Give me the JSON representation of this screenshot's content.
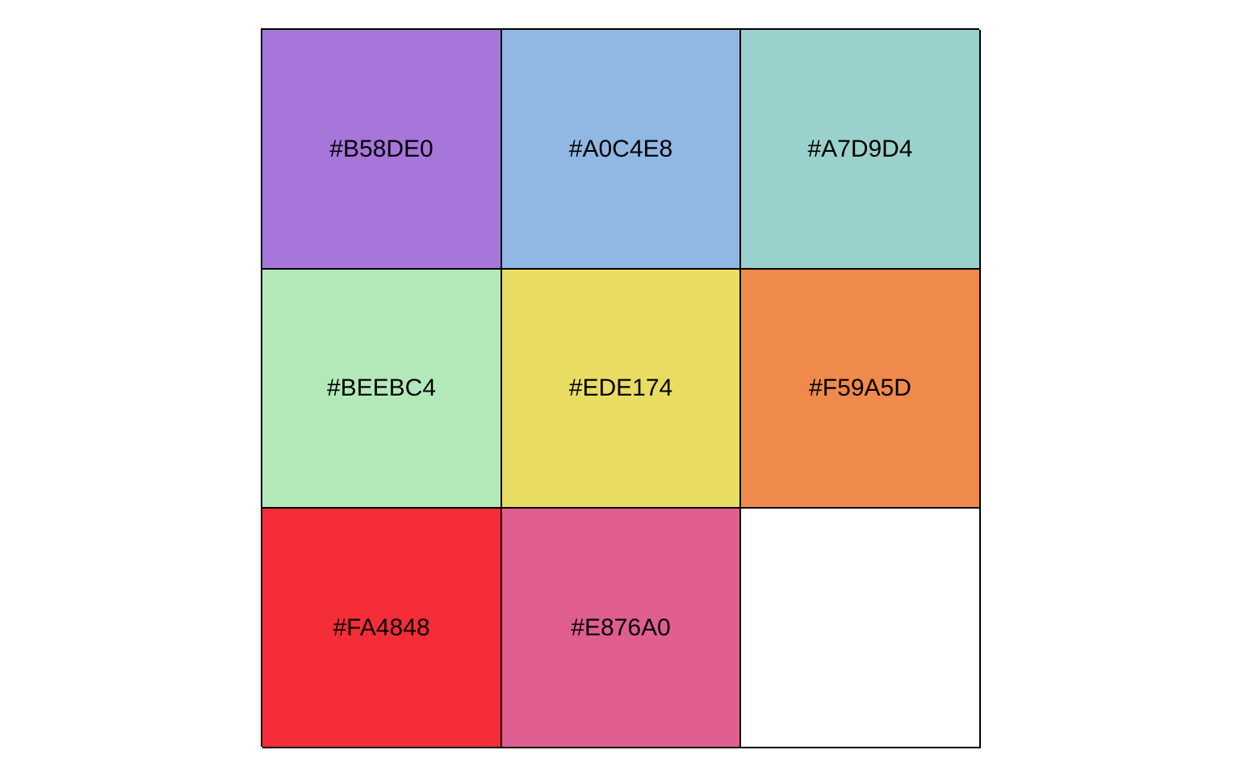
{
  "palette": {
    "swatches": [
      {
        "label": "#B58DE0",
        "fill": "#A676DA"
      },
      {
        "label": "#A0C4E8",
        "fill": "#91B7E3"
      },
      {
        "label": "#A7D9D4",
        "fill": "#9AD1CC"
      },
      {
        "label": "#BEEBC4",
        "fill": "#B3E8B9"
      },
      {
        "label": "#EDE174",
        "fill": "#E8DD62"
      },
      {
        "label": "#F59A5D",
        "fill": "#F0894C"
      },
      {
        "label": "#FA4848",
        "fill": "#F52D38"
      },
      {
        "label": "#E876A0",
        "fill": "#E05E8F"
      },
      {
        "label": "",
        "fill": "#FFFFFF"
      }
    ]
  }
}
